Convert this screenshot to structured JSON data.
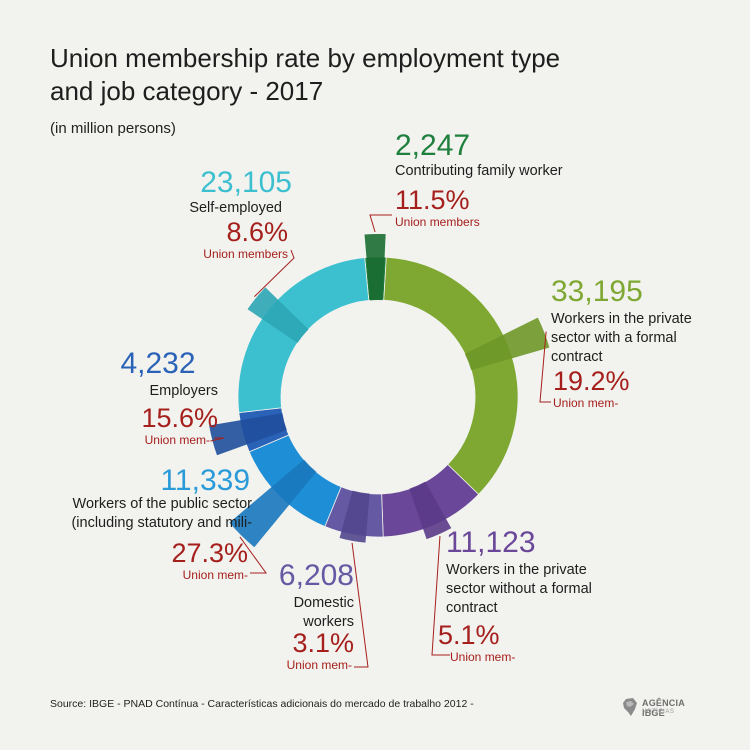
{
  "title": "Union membership rate by employment type and job category - 2017",
  "subtitle": "(in million persons)",
  "footer": "Source: IBGE - PNAD Contínua - Características adicionais do mercado de trabalho 2012 -",
  "logo": {
    "main": "AGÊNCIA IBGE",
    "sub": "NOTÍCIAS"
  },
  "chart_data": {
    "type": "pie",
    "variant": "donut",
    "title": "Union membership rate by employment type and job category - 2017",
    "subtitle": "(in million persons)",
    "slices": [
      {
        "label": "Contributing family worker",
        "value": 2247,
        "display_value": "2,247",
        "union_rate": 11.5,
        "union_rate_label": "11.5%",
        "union_label": "Union members",
        "color": "#1f7f3c",
        "rate_color": "#1a6d32"
      },
      {
        "label": "Workers in the private sector with a formal contract",
        "value": 33195,
        "display_value": "33,195",
        "union_rate": 19.2,
        "union_rate_label": "19.2%",
        "union_label": "Union mem-",
        "color": "#7ea832",
        "rate_color": "#6e9728"
      },
      {
        "label": "Workers in the private sector without a formal contract",
        "value": 11123,
        "display_value": "11,123",
        "union_rate": 5.1,
        "union_rate_label": "5.1%",
        "union_label": "Union mem-",
        "color": "#6a4798",
        "rate_color": "#5b3a88"
      },
      {
        "label": "Domestic workers",
        "value": 6208,
        "display_value": "6,208",
        "union_rate": 3.1,
        "union_rate_label": "3.1%",
        "union_label": "Union mem-",
        "color": "#6559a4",
        "rate_color": "#52478e"
      },
      {
        "label": "Workers of the public sector (including statutory and mili-",
        "value": 11339,
        "display_value": "11,339",
        "union_rate": 27.3,
        "union_rate_label": "27.3%",
        "union_label": "Union mem-",
        "color": "#1e8fd6",
        "rate_color": "#1878bd"
      },
      {
        "label": "Employers",
        "value": 4232,
        "display_value": "4,232",
        "union_rate": 15.6,
        "union_rate_label": "15.6%",
        "union_label": "Union mem-",
        "color": "#2a62b8",
        "rate_color": "#1f4f9c"
      },
      {
        "label": "Self-employed",
        "value": 23105,
        "display_value": "23,105",
        "union_rate": 8.6,
        "union_rate_label": "8.6%",
        "union_label": "Union members",
        "color": "#3cbfcf",
        "rate_color": "#2ba6b4"
      }
    ],
    "legend": "none",
    "colors": {
      "value_text_colors": [
        "#1f7f3c",
        "#7ea832",
        "#6a4798",
        "#6559a4",
        "#2a9bd8",
        "#2a62b8",
        "#3cbfcf"
      ],
      "rate_text": "#a5201c",
      "connector": "#a5201c"
    }
  }
}
